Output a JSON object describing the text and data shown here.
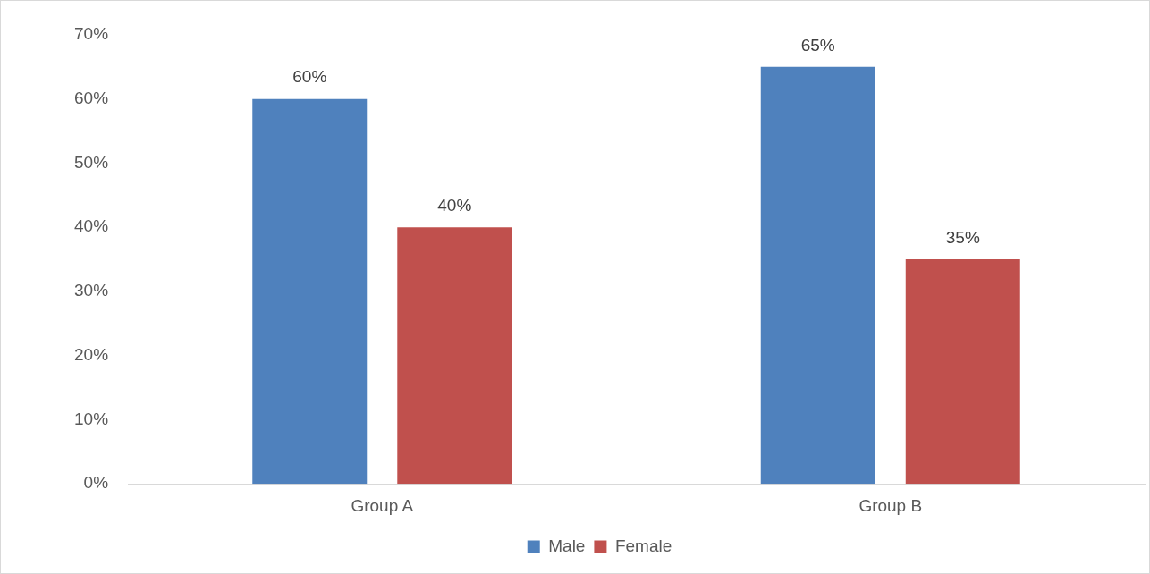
{
  "chart_data": {
    "type": "bar",
    "categories": [
      "Group A",
      "Group B"
    ],
    "series": [
      {
        "name": "Male",
        "color": "#4f81bd",
        "values": [
          60,
          65
        ],
        "value_labels": [
          "60%",
          "65%"
        ]
      },
      {
        "name": "Female",
        "color": "#c0504d",
        "values": [
          40,
          35
        ],
        "value_labels": [
          "40%",
          "35%"
        ]
      }
    ],
    "ylim": [
      0,
      70
    ],
    "yticks": [
      {
        "value": 0,
        "label": "0%"
      },
      {
        "value": 10,
        "label": "10%"
      },
      {
        "value": 20,
        "label": "20%"
      },
      {
        "value": 30,
        "label": "30%"
      },
      {
        "value": 40,
        "label": "40%"
      },
      {
        "value": 50,
        "label": "50%"
      },
      {
        "value": 60,
        "label": "60%"
      },
      {
        "value": 70,
        "label": "70%"
      }
    ],
    "grid": false,
    "legend": "bottom"
  }
}
